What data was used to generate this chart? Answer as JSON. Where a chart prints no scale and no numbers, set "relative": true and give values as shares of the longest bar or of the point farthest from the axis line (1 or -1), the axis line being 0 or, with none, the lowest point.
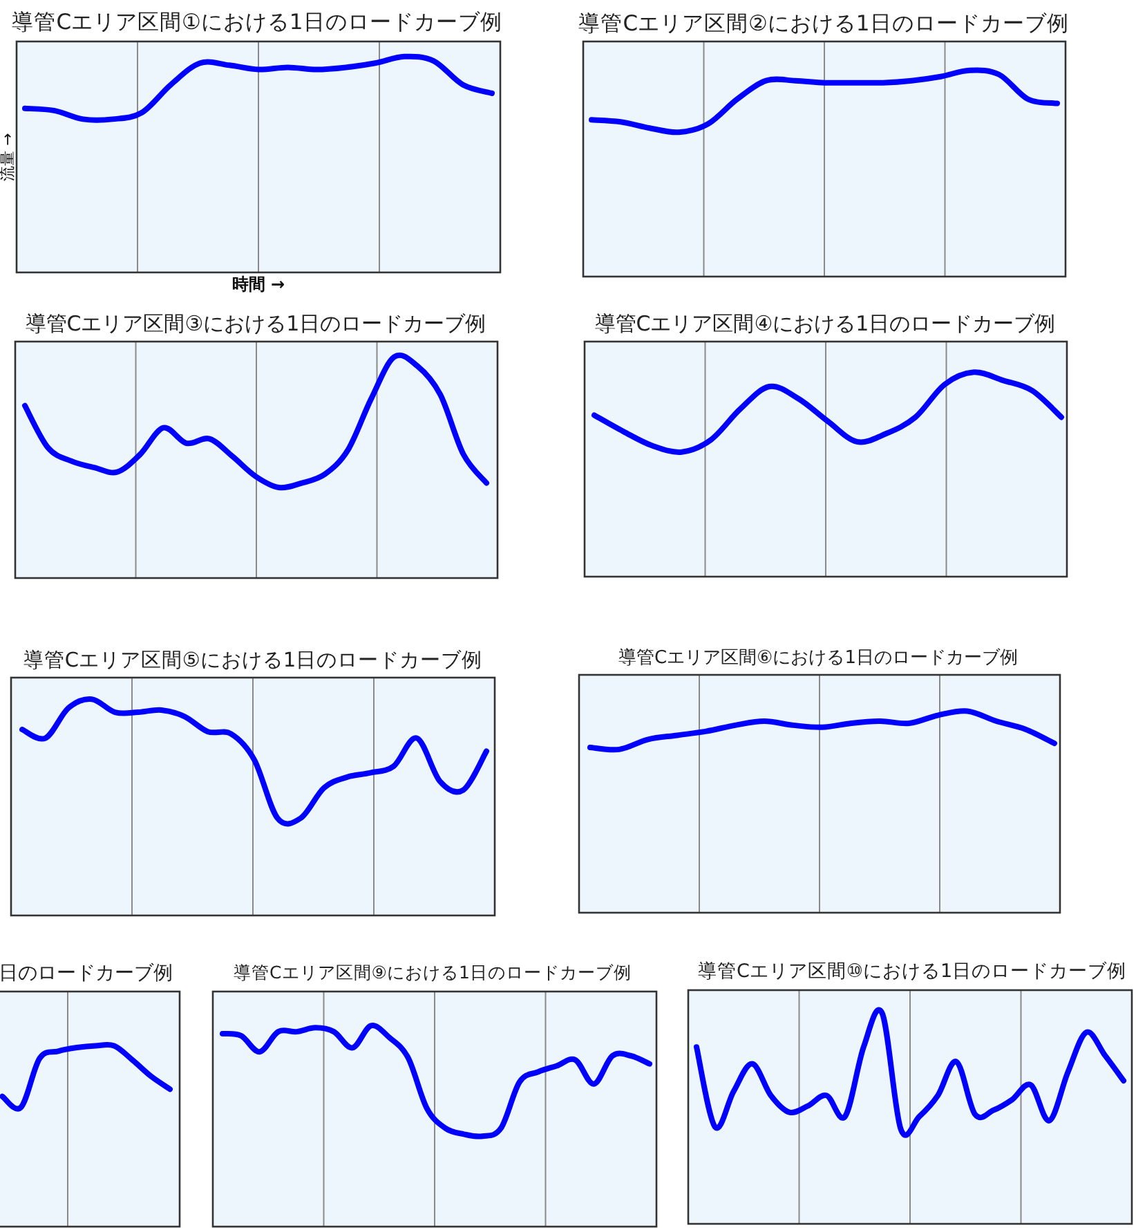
{
  "chart_data": [
    {
      "type": "line",
      "title": "導管Cエリア区間①における1日のロードカーブ例",
      "xlabel": "時間 →",
      "ylabel": "流量 →",
      "relative": true,
      "grid": "x",
      "categories": [
        null,
        null,
        null,
        null,
        null,
        null,
        null,
        null,
        null,
        null,
        null,
        null,
        null,
        null,
        null,
        null,
        null
      ],
      "series": [
        {
          "color": "#0000ff",
          "values": [
            0.76,
            0.75,
            0.71,
            0.71,
            0.74,
            0.87,
            0.97,
            0.96,
            0.94,
            0.95,
            0.94,
            0.95,
            0.97,
            1,
            0.98,
            0.87,
            0.83
          ]
        }
      ]
    },
    {
      "type": "line",
      "title": "導管Cエリア区間②における1日のロードカーブ例",
      "relative": true,
      "grid": "x",
      "categories": [
        null,
        null,
        null,
        null,
        null,
        null,
        null,
        null,
        null,
        null,
        null,
        null,
        null,
        null,
        null,
        null,
        null
      ],
      "series": [
        {
          "color": "#0000ff",
          "values": [
            0.76,
            0.75,
            0.72,
            0.7,
            0.74,
            0.86,
            0.95,
            0.95,
            0.94,
            0.94,
            0.94,
            0.95,
            0.97,
            1,
            0.98,
            0.86,
            0.84
          ]
        }
      ]
    },
    {
      "type": "line",
      "title": "導管Cエリア区間③における1日のロードカーブ例",
      "relative": true,
      "grid": "x",
      "categories": [
        null,
        null,
        null,
        null,
        null,
        null,
        null,
        null,
        null,
        null,
        null,
        null,
        null,
        null,
        null,
        null,
        null,
        null,
        null,
        null,
        null
      ],
      "series": [
        {
          "color": "#0000ff",
          "values": [
            0.78,
            0.59,
            0.53,
            0.5,
            0.48,
            0.56,
            0.68,
            0.61,
            0.63,
            0.55,
            0.46,
            0.41,
            0.43,
            0.47,
            0.58,
            0.81,
            1,
            0.96,
            0.83,
            0.56,
            0.43
          ]
        }
      ]
    },
    {
      "type": "line",
      "title": "導管Cエリア区間④における1日のロードカーブ例",
      "relative": true,
      "grid": "x",
      "categories": [
        null,
        null,
        null,
        null,
        null,
        null,
        null,
        null,
        null,
        null,
        null,
        null,
        null,
        null,
        null,
        null,
        null
      ],
      "series": [
        {
          "color": "#0000ff",
          "values": [
            0.79,
            0.71,
            0.64,
            0.61,
            0.67,
            0.82,
            0.93,
            0.87,
            0.76,
            0.66,
            0.7,
            0.78,
            0.94,
            1,
            0.96,
            0.91,
            0.78
          ]
        }
      ]
    },
    {
      "type": "line",
      "title": "導管Cエリア区間⑤における1日のロードカーブ例",
      "relative": true,
      "grid": "x",
      "categories": [
        null,
        null,
        null,
        null,
        null,
        null,
        null,
        null,
        null,
        null,
        null,
        null,
        null,
        null,
        null,
        null,
        null,
        null,
        null,
        null,
        null
      ],
      "series": [
        {
          "color": "#0000ff",
          "values": [
            0.86,
            0.82,
            0.96,
            1,
            0.94,
            0.94,
            0.95,
            0.92,
            0.85,
            0.84,
            0.72,
            0.45,
            0.45,
            0.59,
            0.64,
            0.66,
            0.69,
            0.82,
            0.62,
            0.58,
            0.76
          ]
        }
      ]
    },
    {
      "type": "line",
      "title": "導管Cエリア区間⑥における1日のロードカーブ例",
      "relative": true,
      "grid": "x",
      "categories": [
        null,
        null,
        null,
        null,
        null,
        null,
        null,
        null,
        null,
        null,
        null,
        null,
        null,
        null,
        null,
        null,
        null
      ],
      "series": [
        {
          "color": "#0000ff",
          "values": [
            0.82,
            0.81,
            0.86,
            0.88,
            0.9,
            0.93,
            0.95,
            0.93,
            0.92,
            0.94,
            0.95,
            0.94,
            0.98,
            1,
            0.95,
            0.91,
            0.84
          ]
        }
      ]
    },
    {
      "type": "line",
      "title": "日のロードカーブ例",
      "relative": true,
      "grid": "x",
      "categories": [
        null,
        null,
        null,
        null,
        null,
        null,
        null,
        null,
        null,
        null,
        null,
        null,
        null,
        null,
        null,
        null,
        null,
        null,
        null,
        null,
        null,
        null,
        null,
        null
      ],
      "series": [
        {
          "color": "#0000ff",
          "values": [
            null,
            null,
            null,
            null,
            null,
            null,
            null,
            null,
            null,
            null,
            null,
            null,
            null,
            null,
            0.72,
            0.66,
            0.93,
            0.97,
            0.99,
            1,
            1,
            0.92,
            0.83,
            0.76
          ]
        }
      ]
    },
    {
      "type": "line",
      "title": "導管Cエリア区間⑨における1日のロードカーブ例",
      "relative": true,
      "grid": "x",
      "categories": [
        null,
        null,
        null,
        null,
        null,
        null,
        null,
        null,
        null,
        null,
        null,
        null,
        null,
        null,
        null,
        null,
        null,
        null,
        null,
        null,
        null,
        null,
        null,
        null
      ],
      "series": [
        {
          "color": "#0000ff",
          "values": [
            0.96,
            0.95,
            0.87,
            0.97,
            0.97,
            0.99,
            0.97,
            0.89,
            1,
            0.94,
            0.84,
            0.59,
            0.49,
            0.46,
            0.45,
            0.49,
            0.72,
            0.77,
            0.8,
            0.83,
            0.71,
            0.85,
            0.85,
            0.81
          ]
        }
      ]
    },
    {
      "type": "line",
      "title": "導管Cエリア区間⑩における1日のロードカーブ例",
      "relative": true,
      "grid": "x",
      "categories": [
        null,
        null,
        null,
        null,
        null,
        null,
        null,
        null,
        null,
        null,
        null,
        null,
        null,
        null,
        null,
        null,
        null,
        null,
        null,
        null,
        null,
        null,
        null,
        null
      ],
      "series": [
        {
          "color": "#0000ff",
          "values": [
            0.84,
            0.46,
            0.63,
            0.76,
            0.61,
            0.53,
            0.56,
            0.61,
            0.51,
            0.84,
            1,
            0.45,
            0.51,
            0.61,
            0.77,
            0.52,
            0.54,
            0.59,
            0.66,
            0.49,
            0.72,
            0.91,
            0.8,
            0.68
          ]
        }
      ]
    }
  ]
}
